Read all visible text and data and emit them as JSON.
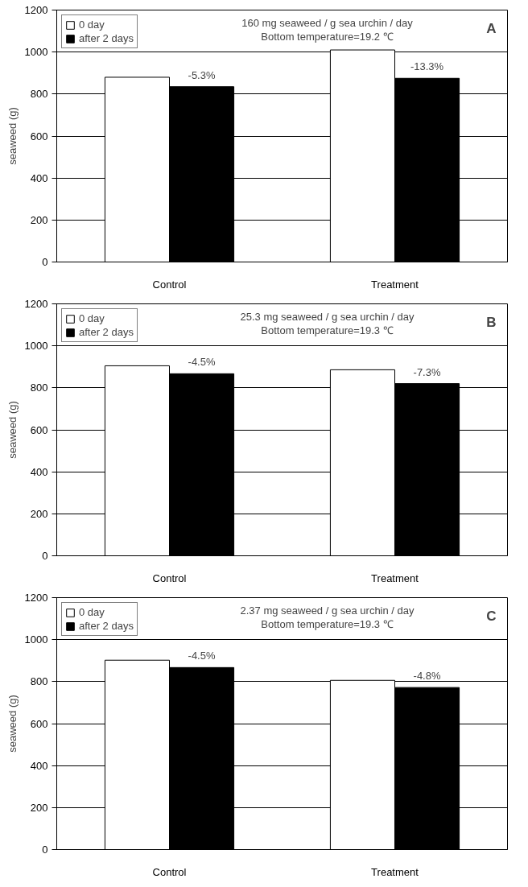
{
  "chart_data": [
    {
      "type": "bar",
      "categories": [
        "Control",
        "Treatment"
      ],
      "ylabel": "seaweed (g)",
      "ylim": [
        0,
        1200
      ],
      "yticks": [
        0,
        200,
        400,
        600,
        800,
        1000,
        1200
      ],
      "grid": "y",
      "legend": "top left",
      "series": [
        {
          "name": "0 day",
          "color": "#ffffff",
          "values": [
            880,
            1010
          ]
        },
        {
          "name": "after 2 days",
          "color": "#000000",
          "values": [
            835,
            875
          ]
        }
      ],
      "annotations": [
        "160 mg seaweed / g sea urchin / day",
        "Bottom temperature=19.2 ℃",
        "A",
        {
          "text": "-5.3%",
          "x": "Control",
          "y": 835
        },
        {
          "text": "-13.3%",
          "x": "Treatment",
          "y": 875
        }
      ]
    },
    {
      "type": "bar",
      "categories": [
        "Control",
        "Treatment"
      ],
      "ylabel": "seaweed (g)",
      "ylim": [
        0,
        1200
      ],
      "yticks": [
        0,
        200,
        400,
        600,
        800,
        1000,
        1200
      ],
      "grid": "y",
      "legend": "top left",
      "series": [
        {
          "name": "0 day",
          "color": "#ffffff",
          "values": [
            905,
            886
          ]
        },
        {
          "name": "after 2 days",
          "color": "#000000",
          "values": [
            867,
            820
          ]
        }
      ],
      "annotations": [
        "25.3 mg seaweed / g sea urchin / day",
        "Bottom temperature=19.3 ℃",
        "B",
        {
          "text": "-4.5%",
          "x": "Control",
          "y": 867
        },
        {
          "text": "-7.3%",
          "x": "Treatment",
          "y": 820
        }
      ]
    },
    {
      "type": "bar",
      "categories": [
        "Control",
        "Treatment"
      ],
      "ylabel": "seaweed (g)",
      "ylim": [
        0,
        1200
      ],
      "yticks": [
        0,
        200,
        400,
        600,
        800,
        1000,
        1200
      ],
      "grid": "y",
      "legend": "top left",
      "series": [
        {
          "name": "0 day",
          "color": "#ffffff",
          "values": [
            902,
            806
          ]
        },
        {
          "name": "after 2 days",
          "color": "#000000",
          "values": [
            867,
            772
          ]
        }
      ],
      "annotations": [
        "2.37 mg seaweed / g sea urchin / day",
        "Bottom temperature=19.3 ℃",
        "C",
        {
          "text": "-4.5%",
          "x": "Control",
          "y": 867
        },
        {
          "text": "-4.8%",
          "x": "Treatment",
          "y": 772
        }
      ]
    }
  ]
}
